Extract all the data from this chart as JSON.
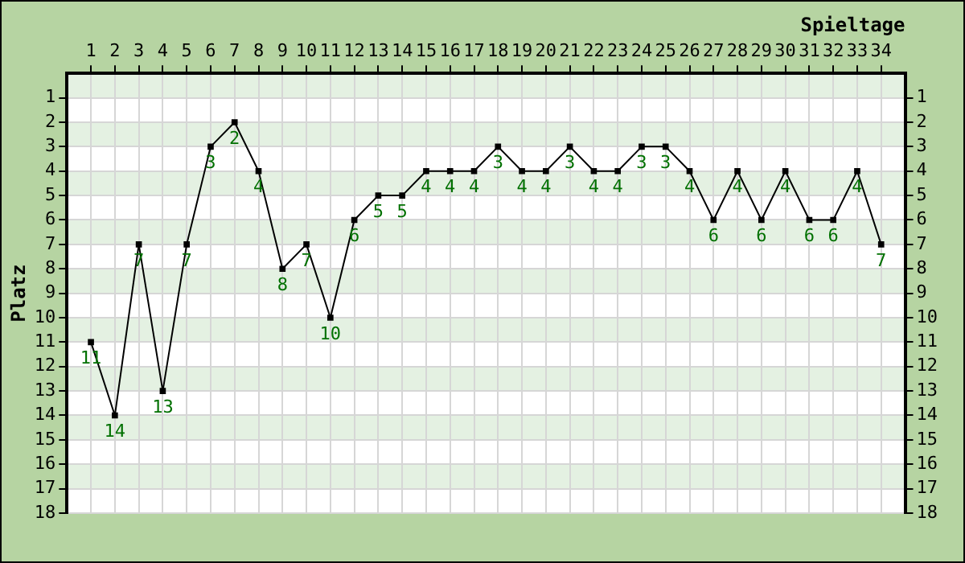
{
  "chart_data": {
    "type": "line",
    "xlabel": "Spieltage",
    "ylabel": "Platz",
    "x": [
      1,
      2,
      3,
      4,
      5,
      6,
      7,
      8,
      9,
      10,
      11,
      12,
      13,
      14,
      15,
      16,
      17,
      18,
      19,
      20,
      21,
      22,
      23,
      24,
      25,
      26,
      27,
      28,
      29,
      30,
      31,
      32,
      33,
      34
    ],
    "series": [
      {
        "color": "#000000",
        "values": [
          11,
          14,
          7,
          13,
          7,
          3,
          2,
          4,
          8,
          7,
          10,
          6,
          5,
          5,
          4,
          4,
          4,
          3,
          4,
          4,
          3,
          4,
          4,
          3,
          3,
          4,
          6,
          4,
          6,
          4,
          6,
          6,
          4,
          7
        ]
      }
    ],
    "xlim": [
      0,
      35
    ],
    "xticks": [
      1,
      2,
      3,
      4,
      5,
      6,
      7,
      8,
      9,
      10,
      11,
      12,
      13,
      14,
      15,
      16,
      17,
      18,
      19,
      20,
      21,
      22,
      23,
      24,
      25,
      26,
      27,
      28,
      29,
      30,
      31,
      32,
      33,
      34
    ],
    "ylim": [
      18,
      0
    ],
    "yticks": [
      1,
      2,
      3,
      4,
      5,
      6,
      7,
      8,
      9,
      10,
      11,
      12,
      13,
      14,
      15,
      16,
      17,
      18
    ],
    "y2lim": [
      18,
      0
    ],
    "y2ticks": [
      1,
      2,
      3,
      4,
      5,
      6,
      7,
      8,
      9,
      10,
      11,
      12,
      13,
      14,
      15,
      16,
      17,
      18
    ],
    "grid": true,
    "marker": "square",
    "line_style": "solid",
    "data_labels": true,
    "legend": false
  }
}
